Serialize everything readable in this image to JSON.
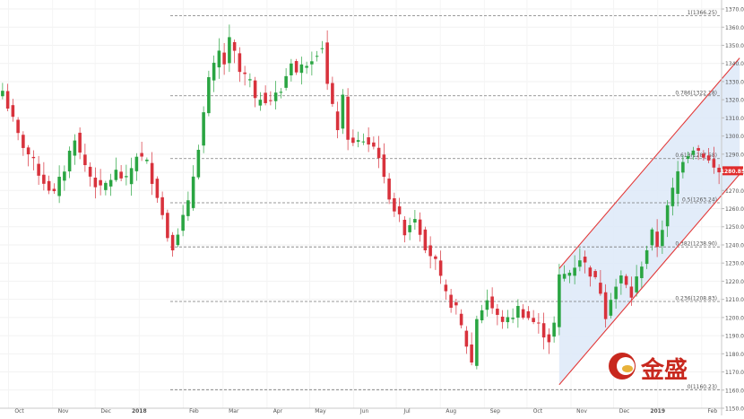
{
  "chart_data": {
    "type": "candlestick",
    "ylim": [
      1150,
      1372
    ],
    "y_ticks": [
      "1150.00",
      "1160.00",
      "1170.00",
      "1180.00",
      "1190.00",
      "1200.00",
      "1210.00",
      "1220.00",
      "1230.00",
      "1240.00",
      "1250.00",
      "1260.00",
      "1270.00",
      "1280.00",
      "1290.00",
      "1300.00",
      "1310.00",
      "1320.00",
      "1330.00",
      "1340.00",
      "1350.00",
      "1360.00",
      "1370.00"
    ],
    "x_labels": [
      "Oct",
      "Nov",
      "Dec",
      "2018",
      "Feb",
      "Mar",
      "Apr",
      "May",
      "Jun",
      "Jul",
      "Aug",
      "Sep",
      "Oct",
      "Nov",
      "Dec",
      "2019",
      "Feb"
    ],
    "time_range": [
      "2017-09-25",
      "2019-02-15"
    ],
    "current_price": "1280.85",
    "fib_levels": [
      {
        "label": "1(1366.25)",
        "value": 1366.25
      },
      {
        "label": "0.786(1322.18)",
        "value": 1322.18
      },
      {
        "label": "0.618(1287.58)",
        "value": 1287.58
      },
      {
        "label": "0.5(1263.24)",
        "value": 1263.24
      },
      {
        "label": "0.382(1238.90)",
        "value": 1238.9
      },
      {
        "label": "0.236(1208.83)",
        "value": 1208.83
      },
      {
        "label": "0(1160.23)",
        "value": 1160.23
      }
    ],
    "price_path": [
      [
        0,
        1325
      ],
      [
        3,
        1300
      ],
      [
        6,
        1285
      ],
      [
        8,
        1275
      ],
      [
        10,
        1268
      ],
      [
        12,
        1282
      ],
      [
        14,
        1300
      ],
      [
        15,
        1290
      ],
      [
        17,
        1278
      ],
      [
        19,
        1270
      ],
      [
        22,
        1280
      ],
      [
        24,
        1275
      ],
      [
        26,
        1290
      ],
      [
        28,
        1285
      ],
      [
        30,
        1268
      ],
      [
        32,
        1245
      ],
      [
        33,
        1240
      ],
      [
        34,
        1248
      ],
      [
        36,
        1262
      ],
      [
        38,
        1295
      ],
      [
        40,
        1330
      ],
      [
        42,
        1346
      ],
      [
        43,
        1340
      ],
      [
        44,
        1352
      ],
      [
        45,
        1345
      ],
      [
        46,
        1335
      ],
      [
        48,
        1330
      ],
      [
        49,
        1318
      ],
      [
        50,
        1322
      ],
      [
        52,
        1320
      ],
      [
        54,
        1325
      ],
      [
        56,
        1342
      ],
      [
        57,
        1335
      ],
      [
        58,
        1338
      ],
      [
        60,
        1344
      ],
      [
        62,
        1350
      ],
      [
        63,
        1328
      ],
      [
        64,
        1315
      ],
      [
        65,
        1305
      ],
      [
        66,
        1320
      ],
      [
        67,
        1300
      ],
      [
        68,
        1295
      ],
      [
        70,
        1298
      ],
      [
        72,
        1294
      ],
      [
        73,
        1290
      ],
      [
        74,
        1275
      ],
      [
        76,
        1260
      ],
      [
        78,
        1248
      ],
      [
        80,
        1256
      ],
      [
        82,
        1240
      ],
      [
        84,
        1230
      ],
      [
        85,
        1220
      ],
      [
        86,
        1212
      ],
      [
        88,
        1204
      ],
      [
        90,
        1185
      ],
      [
        91,
        1175
      ],
      [
        92,
        1200
      ],
      [
        94,
        1210
      ],
      [
        96,
        1200
      ],
      [
        98,
        1198
      ],
      [
        100,
        1205
      ],
      [
        102,
        1200
      ],
      [
        104,
        1195
      ],
      [
        106,
        1188
      ],
      [
        107,
        1196
      ],
      [
        108,
        1222
      ],
      [
        110,
        1225
      ],
      [
        112,
        1233
      ],
      [
        114,
        1225
      ],
      [
        116,
        1215
      ],
      [
        117,
        1202
      ],
      [
        118,
        1212
      ],
      [
        120,
        1222
      ],
      [
        122,
        1212
      ],
      [
        124,
        1230
      ],
      [
        126,
        1246
      ],
      [
        127,
        1240
      ],
      [
        128,
        1250
      ],
      [
        130,
        1270
      ],
      [
        131,
        1280
      ],
      [
        132,
        1288
      ],
      [
        134,
        1294
      ],
      [
        136,
        1290
      ],
      [
        137,
        1286
      ],
      [
        138,
        1282
      ],
      [
        139,
        1280
      ]
    ],
    "channel": {
      "upper": {
        "from": [
          108,
          1227
        ],
        "to": [
          143,
          1343
        ]
      },
      "lower": {
        "from": [
          108,
          1163
        ],
        "to": [
          143,
          1279
        ]
      }
    },
    "logo_text": "金盛"
  }
}
